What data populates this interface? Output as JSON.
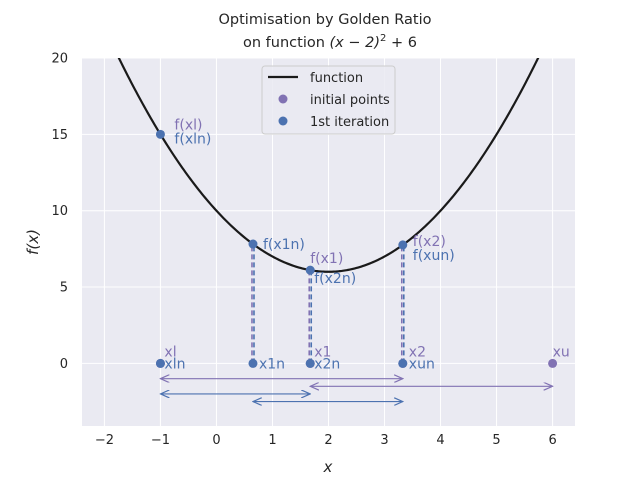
{
  "chart_data": {
    "type": "line",
    "title": "Optimisation by Golden Ratio",
    "subtitle_prefix": "on function ",
    "subtitle_math": "(x − 2)",
    "subtitle_exp": "2",
    "subtitle_suffix": " + 6",
    "xlabel": "x",
    "ylabel": "f(x)",
    "xlim": [
      -2.4,
      6.4
    ],
    "ylim": [
      -4.1,
      20
    ],
    "xticks": [
      -2,
      -1,
      0,
      1,
      2,
      3,
      4,
      5,
      6
    ],
    "yticks": [
      0,
      5,
      10,
      15,
      20
    ],
    "grid": true,
    "legend_position": "top-center",
    "colors": {
      "background": "#eaeaf2",
      "grid": "#ffffff",
      "curve": "#1a1a1a",
      "initial": "#8172b3",
      "iteration": "#4c72b0"
    },
    "function_curve": {
      "name": "function",
      "expression": "(x-2)^2+6",
      "x_range": [
        -2.4,
        6.4
      ]
    },
    "series": [
      {
        "name": "initial points",
        "points": [
          {
            "x": -1.0,
            "y": 0,
            "label": "xl"
          },
          {
            "x": 1.674,
            "y": 0,
            "label": "x1"
          },
          {
            "x": 3.326,
            "y": 0,
            "label": "x2"
          },
          {
            "x": 6.0,
            "y": 0,
            "label": "xu"
          }
        ]
      },
      {
        "name": "1st iteration",
        "points": [
          {
            "x": -1.0,
            "y": 0,
            "label": "xln"
          },
          {
            "x": 0.652,
            "y": 0,
            "label": "x1n"
          },
          {
            "x": 1.674,
            "y": 0,
            "label": "x2n"
          },
          {
            "x": 3.326,
            "y": 0,
            "label": "xun"
          },
          {
            "x": -1.0,
            "y": 15.0
          },
          {
            "x": 0.652,
            "y": 7.816
          },
          {
            "x": 1.674,
            "y": 6.106
          },
          {
            "x": 3.326,
            "y": 7.758
          }
        ]
      }
    ],
    "function_value_labels": [
      {
        "x": -1.0,
        "text": "f(xl)",
        "color": "initial",
        "dx": 14,
        "dy": -10
      },
      {
        "x": -1.0,
        "text": "f(xln)",
        "color": "iteration",
        "dx": 14,
        "dy": 4
      },
      {
        "x": 0.652,
        "text": "f(x1n)",
        "color": "iteration",
        "dx": 10,
        "dy": 0
      },
      {
        "x": 1.674,
        "text": "f(x1)",
        "color": "initial",
        "dx": 0,
        "dy": -12
      },
      {
        "x": 1.674,
        "text": "f(x2n)",
        "color": "iteration",
        "dx": 4,
        "dy": 8
      },
      {
        "x": 3.326,
        "text": "f(x2)",
        "color": "initial",
        "dx": 10,
        "dy": -4
      },
      {
        "x": 3.326,
        "text": "f(xun)",
        "color": "iteration",
        "dx": 10,
        "dy": 10
      }
    ],
    "point_labels": [
      {
        "x": -1.0,
        "text": "xl",
        "color": "initial",
        "dx": 4,
        "dy": -12
      },
      {
        "x": -1.0,
        "text": "xln",
        "color": "iteration",
        "dx": 4,
        "dy": 0
      },
      {
        "x": 0.652,
        "text": "x1n",
        "color": "iteration",
        "dx": 6,
        "dy": 0
      },
      {
        "x": 1.674,
        "text": "x1",
        "color": "initial",
        "dx": 4,
        "dy": -12
      },
      {
        "x": 1.674,
        "text": "x2n",
        "color": "iteration",
        "dx": 4,
        "dy": 0
      },
      {
        "x": 3.326,
        "text": "x2",
        "color": "initial",
        "dx": 6,
        "dy": -12
      },
      {
        "x": 3.326,
        "text": "xun",
        "color": "iteration",
        "dx": 6,
        "dy": 0
      },
      {
        "x": 6.0,
        "text": "xu",
        "color": "initial",
        "dx": 0,
        "dy": -12
      }
    ],
    "interval_arrows": [
      {
        "x0": -1.0,
        "x1": 3.326,
        "y": -1.0,
        "color": "initial"
      },
      {
        "x0": 1.674,
        "x1": 6.0,
        "y": -1.5,
        "color": "initial"
      },
      {
        "x0": -1.0,
        "x1": 1.674,
        "y": -2.0,
        "color": "iteration"
      },
      {
        "x0": 0.652,
        "x1": 3.326,
        "y": -2.5,
        "color": "iteration"
      }
    ]
  }
}
